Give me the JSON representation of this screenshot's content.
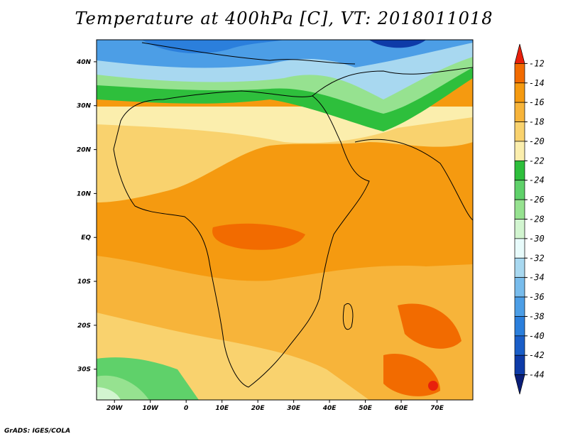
{
  "title": "Temperature at 400hPa [C], VT: 2018011018",
  "footer": "GrADS: IGES/COLA",
  "map": {
    "projection": "latlon",
    "lon_range": [
      -25,
      80
    ],
    "lat_range": [
      -37,
      45
    ],
    "lon_ticks": [
      {
        "value": -20,
        "label": "20W"
      },
      {
        "value": -10,
        "label": "10W"
      },
      {
        "value": 0,
        "label": "0"
      },
      {
        "value": 10,
        "label": "10E"
      },
      {
        "value": 20,
        "label": "20E"
      },
      {
        "value": 30,
        "label": "30E"
      },
      {
        "value": 40,
        "label": "40E"
      },
      {
        "value": 50,
        "label": "50E"
      },
      {
        "value": 60,
        "label": "60E"
      },
      {
        "value": 70,
        "label": "70E"
      }
    ],
    "lat_ticks": [
      {
        "value": 40,
        "label": "40N"
      },
      {
        "value": 30,
        "label": "30N"
      },
      {
        "value": 20,
        "label": "20N"
      },
      {
        "value": 10,
        "label": "10N"
      },
      {
        "value": 0,
        "label": "EQ"
      },
      {
        "value": -10,
        "label": "10S"
      },
      {
        "value": -20,
        "label": "20S"
      },
      {
        "value": -30,
        "label": "30S"
      }
    ]
  },
  "colorbar": {
    "levels": [
      -12,
      -14,
      -16,
      -18,
      -20,
      -22,
      -24,
      -26,
      -28,
      -30,
      -32,
      -34,
      -36,
      -38,
      -40,
      -42,
      -44
    ],
    "colors": [
      "#e8200c",
      "#f26b00",
      "#f59a10",
      "#f7b43a",
      "#f9d26e",
      "#fbeead",
      "#2ebf3c",
      "#5fd16a",
      "#96e290",
      "#d2f5d0",
      "#e8fbfb",
      "#a8d8f0",
      "#78bcec",
      "#4c9ee6",
      "#2b7fdc",
      "#1a5ec8",
      "#0e3ba8",
      "#0a1e78"
    ]
  }
}
